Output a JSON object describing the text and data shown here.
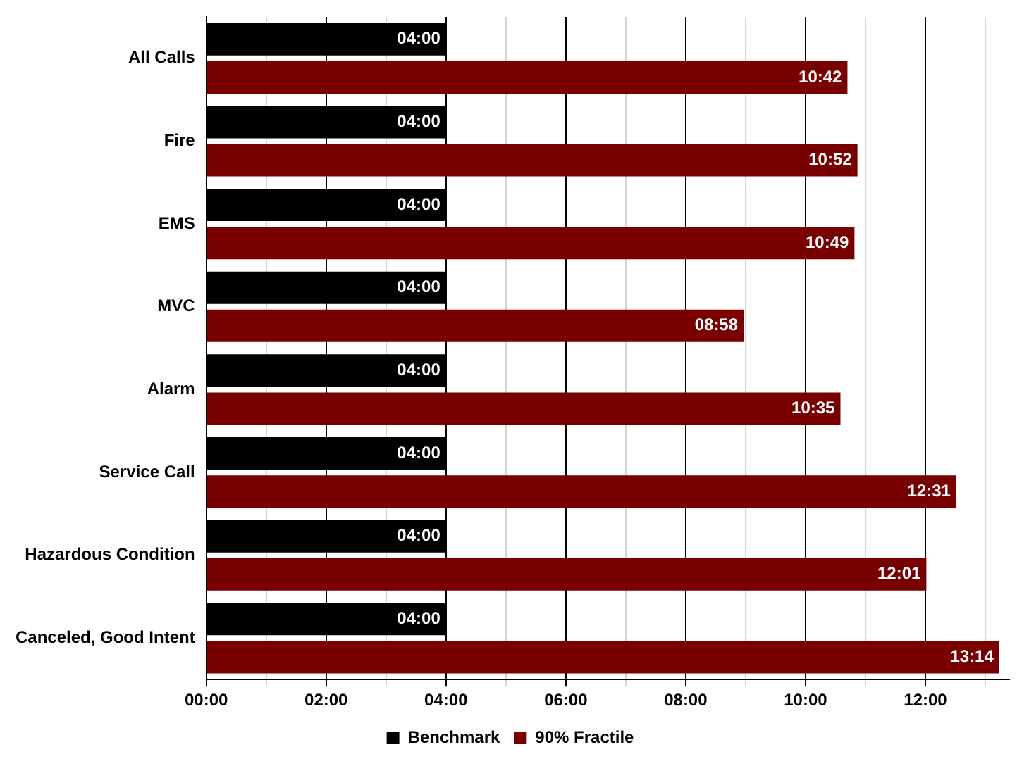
{
  "chart_data": {
    "type": "bar",
    "orientation": "horizontal",
    "categories": [
      "All Calls",
      "Fire",
      "EMS",
      "MVC",
      "Alarm",
      "Service Call",
      "Hazardous Condition",
      "Canceled, Good Intent"
    ],
    "series": [
      {
        "name": "Benchmark",
        "color": "#000000",
        "values": [
          4,
          4,
          4,
          4,
          4,
          4,
          4,
          4
        ],
        "value_labels": [
          "04:00",
          "04:00",
          "04:00",
          "04:00",
          "04:00",
          "04:00",
          "04:00",
          "04:00"
        ]
      },
      {
        "name": "90% Fractile",
        "color": "#780000",
        "values": [
          10.7,
          10.867,
          10.817,
          8.967,
          10.583,
          12.517,
          12.017,
          13.233
        ],
        "value_labels": [
          "10:42",
          "10:52",
          "10:49",
          "08:58",
          "10:35",
          "12:31",
          "12:01",
          "13:14"
        ]
      }
    ],
    "xlim": [
      0,
      13.4
    ],
    "xticks": [
      {
        "value": 0,
        "label": "00:00"
      },
      {
        "value": 1,
        "label": null
      },
      {
        "value": 2,
        "label": "02:00"
      },
      {
        "value": 3,
        "label": null
      },
      {
        "value": 4,
        "label": "04:00"
      },
      {
        "value": 5,
        "label": null
      },
      {
        "value": 6,
        "label": "06:00"
      },
      {
        "value": 7,
        "label": null
      },
      {
        "value": 8,
        "label": "08:00"
      },
      {
        "value": 9,
        "label": null
      },
      {
        "value": 10,
        "label": "10:00"
      },
      {
        "value": 11,
        "label": null
      },
      {
        "value": 12,
        "label": "12:00"
      },
      {
        "value": 13,
        "label": null
      }
    ],
    "grid": "x",
    "legend": "bottom"
  }
}
